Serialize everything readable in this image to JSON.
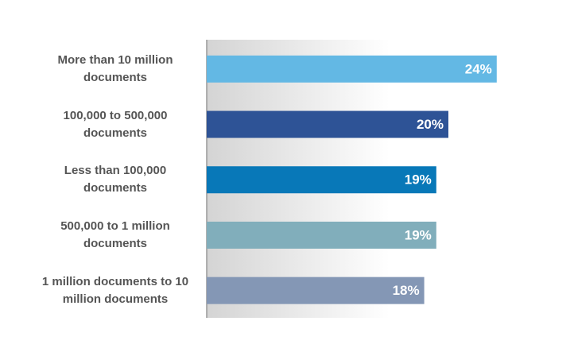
{
  "chart_data": {
    "type": "bar",
    "orientation": "horizontal",
    "categories": [
      "More than 10 million documents",
      "100,000 to 500,000 documents",
      "Less than 100,000 documents",
      "500,000 to 1 million documents",
      "1 million documents to 10 million documents"
    ],
    "values": [
      24,
      20,
      19,
      19,
      18
    ],
    "value_labels": [
      "24%",
      "20%",
      "19%",
      "19%",
      "18%"
    ],
    "colors": [
      "#63b8e4",
      "#2e5396",
      "#0878b8",
      "#81aebb",
      "#8497b5"
    ]
  }
}
